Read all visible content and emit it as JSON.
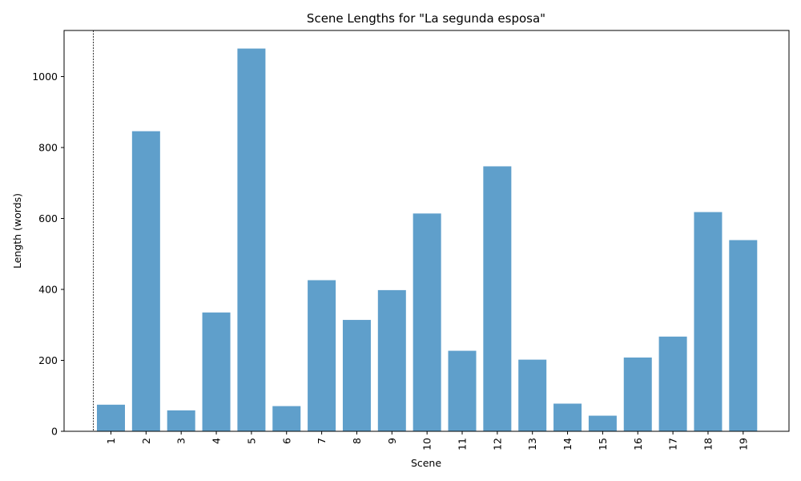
{
  "chart_data": {
    "type": "bar",
    "title": "Scene Lengths for \"La segunda esposa\"",
    "xlabel": "Scene",
    "ylabel": "Length (words)",
    "categories": [
      "1",
      "2",
      "3",
      "4",
      "5",
      "6",
      "7",
      "8",
      "9",
      "10",
      "11",
      "12",
      "13",
      "14",
      "15",
      "16",
      "17",
      "18",
      "19"
    ],
    "values": [
      75,
      846,
      59,
      335,
      1079,
      71,
      426,
      314,
      398,
      614,
      227,
      747,
      202,
      78,
      44,
      208,
      267,
      618,
      539
    ],
    "ylim": [
      0,
      1130
    ],
    "yticks": [
      0,
      200,
      400,
      600,
      800,
      1000
    ],
    "grid": false,
    "bar_color": "#5f9fcb",
    "reference_line": {
      "style": "dashed",
      "color": "#000000"
    }
  }
}
